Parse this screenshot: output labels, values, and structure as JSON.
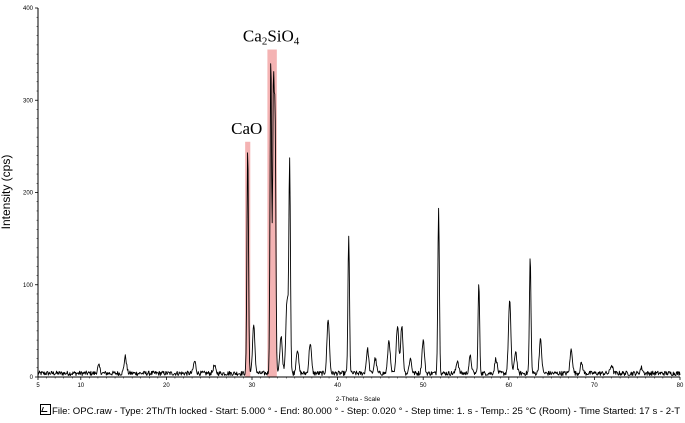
{
  "chart_data": {
    "type": "line",
    "xlabel": "2-Theta - Scale",
    "ylabel": "Intensity (cps)",
    "xlim": [
      5,
      80
    ],
    "ylim": [
      0,
      400
    ],
    "xticks": [
      "5",
      "10",
      "20",
      "30",
      "40",
      "50",
      "60",
      "70",
      "80"
    ],
    "yticks": [
      "0",
      "100",
      "200",
      "300",
      "400"
    ],
    "series_color": "#000000",
    "highlight_color": "#f4b3b3",
    "baseline": 4,
    "noise": 2.5,
    "peaks": [
      {
        "x": 12.1,
        "y": 12
      },
      {
        "x": 15.2,
        "y": 22
      },
      {
        "x": 23.3,
        "y": 17
      },
      {
        "x": 25.6,
        "y": 12
      },
      {
        "x": 29.5,
        "y": 250
      },
      {
        "x": 30.2,
        "y": 55
      },
      {
        "x": 32.2,
        "y": 350
      },
      {
        "x": 32.5,
        "y": 305
      },
      {
        "x": 32.7,
        "y": 270
      },
      {
        "x": 33.4,
        "y": 45
      },
      {
        "x": 34.1,
        "y": 85
      },
      {
        "x": 34.4,
        "y": 230
      },
      {
        "x": 35.3,
        "y": 30
      },
      {
        "x": 36.8,
        "y": 37
      },
      {
        "x": 38.9,
        "y": 63
      },
      {
        "x": 41.3,
        "y": 152
      },
      {
        "x": 43.5,
        "y": 30
      },
      {
        "x": 44.4,
        "y": 20
      },
      {
        "x": 46.0,
        "y": 40
      },
      {
        "x": 47.0,
        "y": 57
      },
      {
        "x": 47.5,
        "y": 55
      },
      {
        "x": 48.5,
        "y": 20
      },
      {
        "x": 50.0,
        "y": 40
      },
      {
        "x": 51.8,
        "y": 183
      },
      {
        "x": 54.0,
        "y": 18
      },
      {
        "x": 55.5,
        "y": 22
      },
      {
        "x": 56.5,
        "y": 102
      },
      {
        "x": 58.5,
        "y": 20
      },
      {
        "x": 60.1,
        "y": 82
      },
      {
        "x": 60.8,
        "y": 28
      },
      {
        "x": 62.5,
        "y": 130
      },
      {
        "x": 63.7,
        "y": 40
      },
      {
        "x": 67.3,
        "y": 30
      },
      {
        "x": 68.5,
        "y": 15
      },
      {
        "x": 72.0,
        "y": 13
      },
      {
        "x": 75.5,
        "y": 10
      }
    ],
    "annotations": [
      {
        "label": "CaO",
        "text_parts": [
          "CaO"
        ],
        "x_range": [
          29.2,
          29.8
        ],
        "y_top": 255
      },
      {
        "label": "Ca2SiO4",
        "text_parts": [
          "Ca",
          "2",
          "SiO",
          "4"
        ],
        "x_range": [
          31.8,
          32.9
        ],
        "y_top": 355
      }
    ]
  },
  "caption": "File: OPC.raw - Type: 2Th/Th locked - Start: 5.000 ° - End: 80.000 ° - Step: 0.020 ° - Step time: 1. s - Temp.: 25 °C (Room) - Time Started: 17 s - 2-T"
}
